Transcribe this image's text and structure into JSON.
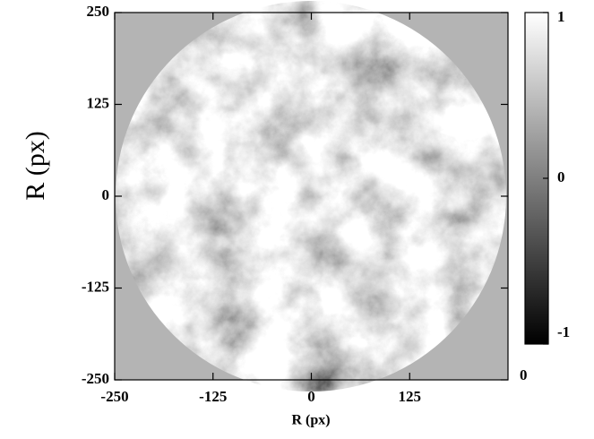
{
  "chart_data": {
    "type": "image",
    "xlabel": "R (px)",
    "ylabel": "R (px)",
    "xlim": [
      -250,
      250
    ],
    "ylim": [
      -250,
      250
    ],
    "xticks": [
      -250,
      -125,
      0,
      125
    ],
    "yticks": [
      -250,
      -125,
      0,
      125,
      250
    ],
    "colorbar": {
      "lim": [
        -1,
        1
      ],
      "ticks": [
        -1,
        0,
        1
      ]
    },
    "annotation": "0"
  }
}
